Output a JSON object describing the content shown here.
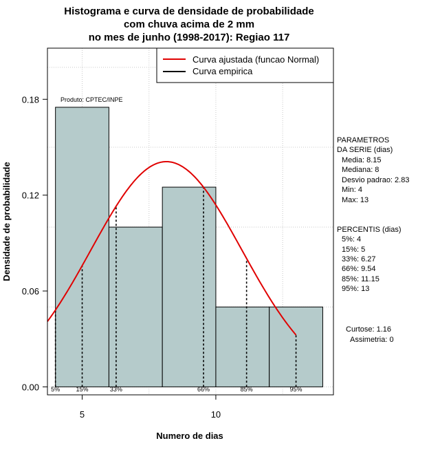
{
  "chart_data": {
    "type": "histogram",
    "title": [
      "Histograma e curva de densidade de probabilidade",
      "com chuva acima de 2 mm",
      "no mes de junho (1998-2017): Regiao 117"
    ],
    "xlabel": "Numero de dias",
    "ylabel": "Densidade de probabilidade",
    "xlim": [
      3.7,
      14.4
    ],
    "ylim": [
      -0.005,
      0.212
    ],
    "x_ticks": [
      5,
      10
    ],
    "y_ticks": [
      0.0,
      0.06,
      0.12,
      0.18
    ],
    "y_tick_labels": [
      "0.00",
      "0.06",
      "0.12",
      "0.18"
    ],
    "grid": true,
    "bins": [
      {
        "x0": 4,
        "x1": 6,
        "density": 0.175
      },
      {
        "x0": 6,
        "x1": 8,
        "density": 0.1
      },
      {
        "x0": 8,
        "x1": 10,
        "density": 0.125
      },
      {
        "x0": 10,
        "x1": 12,
        "density": 0.05
      },
      {
        "x0": 12,
        "x1": 14,
        "density": 0.05
      }
    ],
    "bar_color": "#b5cbcb",
    "curve": {
      "name": "Curva ajustada (funcao Normal)",
      "mean": 8.15,
      "sd": 2.83,
      "x_range": [
        3.7,
        13.0
      ],
      "color": "#e00000"
    },
    "empirical_label": "Curva empirica",
    "percentiles": [
      {
        "label": "5%",
        "x": 4
      },
      {
        "label": "15%",
        "x": 5
      },
      {
        "label": "33%",
        "x": 6.27
      },
      {
        "label": "66%",
        "x": 9.54
      },
      {
        "label": "85%",
        "x": 11.15
      },
      {
        "label": "95%",
        "x": 13
      }
    ],
    "legend_position": "top-right",
    "product_label": "Produto: CPTEC/INPE"
  },
  "side_panel": {
    "params_title": [
      "PARAMETROS",
      "DA SERIE (dias)"
    ],
    "params": [
      "Media: 8.15",
      "Mediana: 8",
      "Desvio padrao: 2.83",
      "Min: 4",
      "Max: 13"
    ],
    "percentis_title": "PERCENTIS (dias)",
    "percentis": [
      "5%: 4",
      "15%: 5",
      "33%: 6.27",
      "66%: 9.54",
      "85%: 11.15",
      "95%: 13"
    ],
    "curtose": "Curtose: 1.16",
    "assimetria": "Assimetria: 0"
  }
}
